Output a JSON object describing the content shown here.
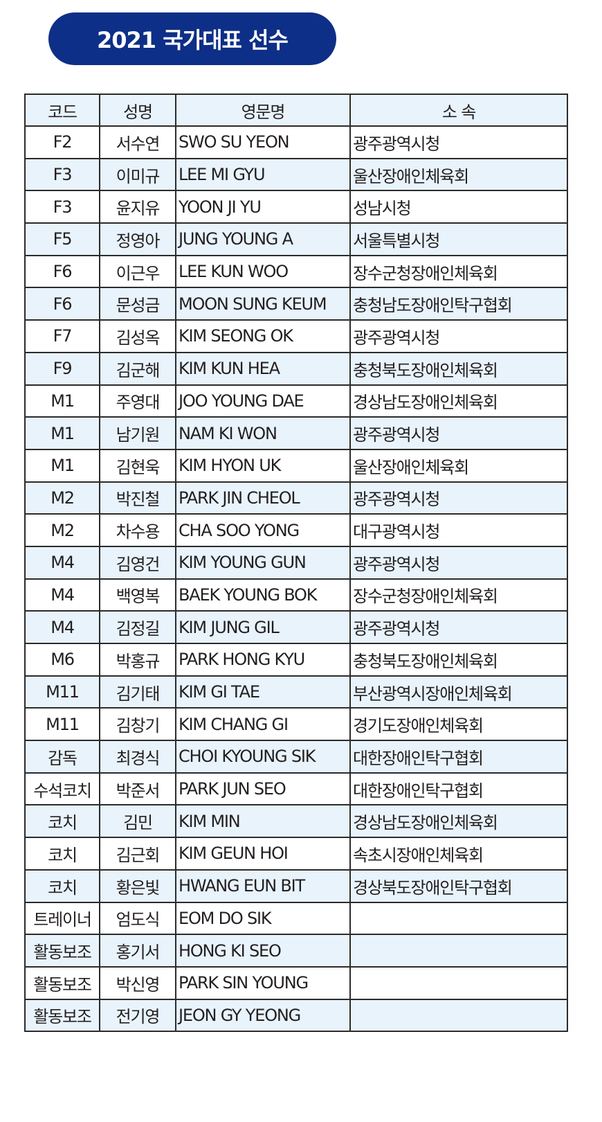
{
  "title": "2021 국가대표 선수",
  "colors": {
    "title_bg": "#0e2f87",
    "row_alt": "#e8f3fc",
    "border": "#2b2b2b"
  },
  "table": {
    "headers": [
      "코드",
      "성명",
      "영문명",
      "소 속"
    ],
    "rows": [
      [
        "F2",
        "서수연",
        "SWO SU YEON",
        "광주광역시청"
      ],
      [
        "F3",
        "이미규",
        "LEE MI GYU",
        "울산장애인체육회"
      ],
      [
        "F3",
        "윤지유",
        "YOON JI YU",
        "성남시청"
      ],
      [
        "F5",
        "정영아",
        "JUNG YOUNG A",
        "서울특별시청"
      ],
      [
        "F6",
        "이근우",
        "LEE KUN WOO",
        "장수군청장애인체육회"
      ],
      [
        "F6",
        "문성금",
        "MOON SUNG KEUM",
        "충청남도장애인탁구협회"
      ],
      [
        "F7",
        "김성옥",
        "KIM SEONG OK",
        "광주광역시청"
      ],
      [
        "F9",
        "김군해",
        "KIM KUN HEA",
        "충청북도장애인체육회"
      ],
      [
        "M1",
        "주영대",
        "JOO YOUNG DAE",
        "경상남도장애인체육회"
      ],
      [
        "M1",
        "남기원",
        "NAM KI WON",
        "광주광역시청"
      ],
      [
        "M1",
        "김현욱",
        "KIM HYON UK",
        "울산장애인체육회"
      ],
      [
        "M2",
        "박진철",
        "PARK JIN CHEOL",
        "광주광역시청"
      ],
      [
        "M2",
        "차수용",
        "CHA SOO YONG",
        "대구광역시청"
      ],
      [
        "M4",
        "김영건",
        "KIM YOUNG GUN",
        "광주광역시청"
      ],
      [
        "M4",
        "백영복",
        "BAEK YOUNG BOK",
        "장수군청장애인체육회"
      ],
      [
        "M4",
        "김정길",
        "KIM JUNG GIL",
        "광주광역시청"
      ],
      [
        "M6",
        "박홍규",
        "PARK HONG KYU",
        "충청북도장애인체육회"
      ],
      [
        "M11",
        "김기태",
        "KIM GI TAE",
        "부산광역시장애인체육회"
      ],
      [
        "M11",
        "김창기",
        "KIM CHANG GI",
        "경기도장애인체육회"
      ],
      [
        "감독",
        "최경식",
        "CHOI KYOUNG SIK",
        "대한장애인탁구협회"
      ],
      [
        "수석코치",
        "박준서",
        "PARK JUN SEO",
        "대한장애인탁구협회"
      ],
      [
        "코치",
        "김민",
        "KIM MIN",
        "경상남도장애인체육회"
      ],
      [
        "코치",
        "김근회",
        "KIM GEUN HOI",
        "속초시장애인체육회"
      ],
      [
        "코치",
        "황은빛",
        "HWANG EUN BIT",
        "경상북도장애인탁구협회"
      ],
      [
        "트레이너",
        "엄도식",
        "EOM DO SIK",
        ""
      ],
      [
        "활동보조",
        "홍기서",
        "HONG KI SEO",
        ""
      ],
      [
        "활동보조",
        "박신영",
        "PARK SIN YOUNG",
        ""
      ],
      [
        "활동보조",
        "전기영",
        "JEON GY YEONG",
        ""
      ]
    ]
  }
}
